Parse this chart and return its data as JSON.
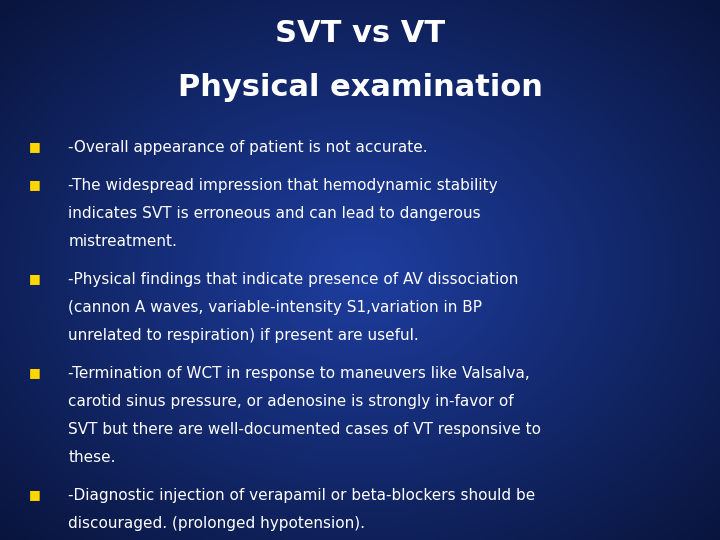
{
  "title_line1": "SVT vs VT",
  "title_line2": "Physical examination",
  "title_color": "#ffffff",
  "bullet_color": "#FFD700",
  "text_color": "#ffffff",
  "background_color_center": "#1e3ea0",
  "background_color_edge": "#050d2a",
  "bullet_points": [
    "-Overall appearance of patient is not accurate.",
    "-The widespread impression that hemodynamic stability\nindicates SVT is erroneous and can lead to dangerous\nmistreatment.",
    "-Physical findings that indicate presence of AV dissociation\n(cannon A waves, variable-intensity S1,variation in BP\nunrelated to respiration) if present are useful.",
    "-Termination of WCT in response to maneuvers like Valsalva,\ncarotid sinus pressure, or adenosine is strongly in-favor of\nSVT but there are well-documented cases of VT responsive to\nthese.",
    "-Diagnostic injection of verapamil or beta-blockers should be\ndiscouraged. (prolonged hypotension)."
  ],
  "title_fontsize": 22,
  "body_fontsize": 11,
  "bullet_square_size": 9,
  "figsize": [
    7.2,
    5.4
  ],
  "dpi": 100
}
